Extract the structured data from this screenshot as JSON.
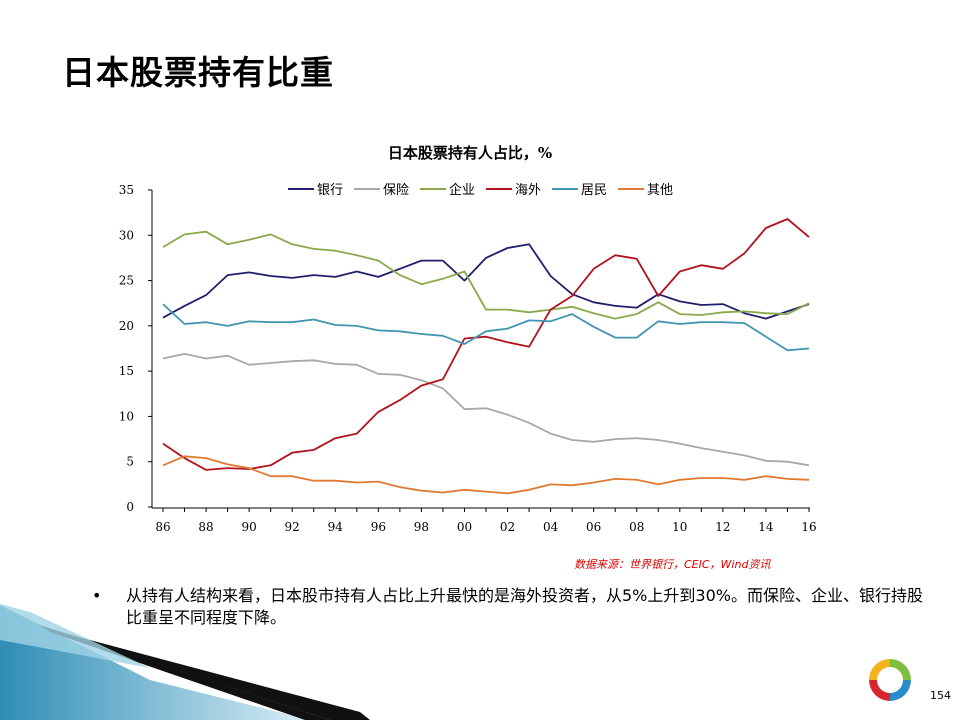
{
  "slide": {
    "title": "日本股票持有比重",
    "source": "数据来源：世界银行，CEIC，Wind资讯",
    "bullet_symbol": "•",
    "bullet_text": "从持有人结构来看，日本股市持有人占比上升最快的是海外投资者，从5%上升到30%。而保险、企业、银行持股比重呈不同程度下降。",
    "page_number": "154"
  },
  "chart_data": {
    "type": "line",
    "title": "日本股票持有人占比，%",
    "x": [
      "86",
      "87",
      "88",
      "89",
      "90",
      "91",
      "92",
      "93",
      "94",
      "95",
      "96",
      "97",
      "98",
      "99",
      "00",
      "01",
      "02",
      "03",
      "04",
      "05",
      "06",
      "07",
      "08",
      "09",
      "10",
      "11",
      "12",
      "13",
      "14",
      "15",
      "16"
    ],
    "x_tick_labels": [
      "86",
      "88",
      "90",
      "92",
      "94",
      "96",
      "98",
      "00",
      "02",
      "04",
      "06",
      "08",
      "10",
      "12",
      "14",
      "16"
    ],
    "y_ticks": [
      "0",
      "5",
      "10",
      "15",
      "20",
      "25",
      "30",
      "35"
    ],
    "ylim": [
      0,
      35
    ],
    "grid": false,
    "legend_position": "top",
    "series": [
      {
        "name": "银行",
        "color": "#1f1f6e",
        "values": [
          20.9,
          22.2,
          23.4,
          25.6,
          25.9,
          25.5,
          25.3,
          25.6,
          25.4,
          26.0,
          25.4,
          26.3,
          27.2,
          27.2,
          25.0,
          27.5,
          28.6,
          29.0,
          25.5,
          23.5,
          22.6,
          22.2,
          22.0,
          23.5,
          22.7,
          22.3,
          22.4,
          21.4,
          20.8,
          21.6,
          22.4
        ]
      },
      {
        "name": "保险",
        "color": "#a8a8a8",
        "values": [
          16.4,
          16.9,
          16.4,
          16.7,
          15.7,
          15.9,
          16.1,
          16.2,
          15.8,
          15.7,
          14.7,
          14.6,
          14.0,
          13.1,
          10.8,
          10.9,
          10.2,
          9.3,
          8.1,
          7.4,
          7.2,
          7.5,
          7.6,
          7.4,
          7.0,
          6.5,
          6.1,
          5.7,
          5.1,
          5.0,
          4.6
        ]
      },
      {
        "name": "企业",
        "color": "#8aa94a",
        "values": [
          28.7,
          30.1,
          30.4,
          29.0,
          29.5,
          30.1,
          29.0,
          28.5,
          28.3,
          27.8,
          27.2,
          25.6,
          24.6,
          25.2,
          26.0,
          21.8,
          21.8,
          21.5,
          21.8,
          22.1,
          21.4,
          20.8,
          21.3,
          22.6,
          21.3,
          21.2,
          21.5,
          21.6,
          21.4,
          21.3,
          22.5
        ]
      },
      {
        "name": "海外",
        "color": "#b2121d",
        "values": [
          7.0,
          5.4,
          4.1,
          4.3,
          4.2,
          4.6,
          6.0,
          6.3,
          7.6,
          8.1,
          10.5,
          11.8,
          13.4,
          14.1,
          18.6,
          18.8,
          18.2,
          17.7,
          21.8,
          23.3,
          26.3,
          27.8,
          27.4,
          23.3,
          26.0,
          26.7,
          26.3,
          28.0,
          30.8,
          31.8,
          29.8
        ]
      },
      {
        "name": "居民",
        "color": "#4195b1",
        "values": [
          22.4,
          20.2,
          20.4,
          20.0,
          20.5,
          20.4,
          20.4,
          20.7,
          20.1,
          20.0,
          19.5,
          19.4,
          19.1,
          18.9,
          18.0,
          19.4,
          19.7,
          20.6,
          20.5,
          21.3,
          19.9,
          18.7,
          18.7,
          20.5,
          20.2,
          20.4,
          20.4,
          20.3,
          18.8,
          17.3,
          17.5
        ]
      },
      {
        "name": "其他",
        "color": "#e07a30",
        "values": [
          4.6,
          5.6,
          5.4,
          4.7,
          4.3,
          3.4,
          3.4,
          2.9,
          2.9,
          2.7,
          2.8,
          2.2,
          1.8,
          1.6,
          1.9,
          1.7,
          1.5,
          1.9,
          2.5,
          2.4,
          2.7,
          3.1,
          3.0,
          2.5,
          3.0,
          3.2,
          3.2,
          3.0,
          3.4,
          3.1,
          3.0
        ]
      }
    ]
  }
}
